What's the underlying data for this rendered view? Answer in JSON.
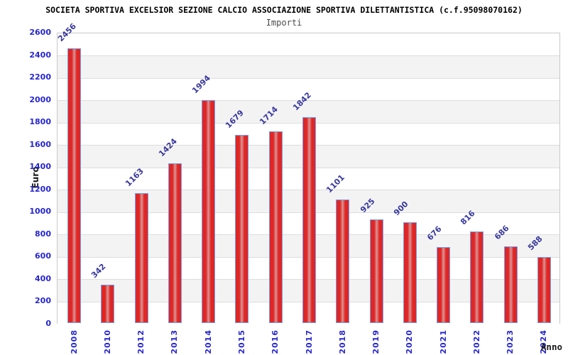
{
  "chart_data": {
    "type": "bar",
    "title": "SOCIETA SPORTIVA EXCELSIOR SEZIONE CALCIO ASSOCIAZIONE SPORTIVA DILETTANTISTICA (c.f.95098070162)",
    "subtitle": "Importi",
    "xlabel": "Anno",
    "ylabel": "Euro",
    "categories": [
      "2008",
      "2010",
      "2012",
      "2013",
      "2014",
      "2015",
      "2016",
      "2017",
      "2018",
      "2019",
      "2020",
      "2021",
      "2022",
      "2023",
      "2024"
    ],
    "values": [
      2456,
      342,
      1163,
      1424,
      1994,
      1679,
      1714,
      1842,
      1101,
      925,
      900,
      676,
      816,
      686,
      588
    ],
    "ylim": [
      0,
      2600
    ],
    "ytick_step": 200,
    "yticks": [
      0,
      200,
      400,
      600,
      800,
      1000,
      1200,
      1400,
      1600,
      1800,
      2000,
      2200,
      2400,
      2600
    ],
    "grid": true,
    "legend": "none",
    "bar_value_labels_rotation_deg": -45,
    "x_tick_rotation_deg": -90
  },
  "colors": {
    "tick_label": "#2626d0",
    "value_label": "#38389d",
    "bar_edge": "#e12525",
    "bar_center": "#d49898",
    "bar_border": "#6fa2ee",
    "grid_line": "#dddddd",
    "band_light": "#ffffff",
    "band_gray": "#f3f3f3",
    "plot_border": "#c9c9c9",
    "title": "#000000",
    "subtitle": "#4d4d4d",
    "axis_title": "#1a1a1a"
  }
}
